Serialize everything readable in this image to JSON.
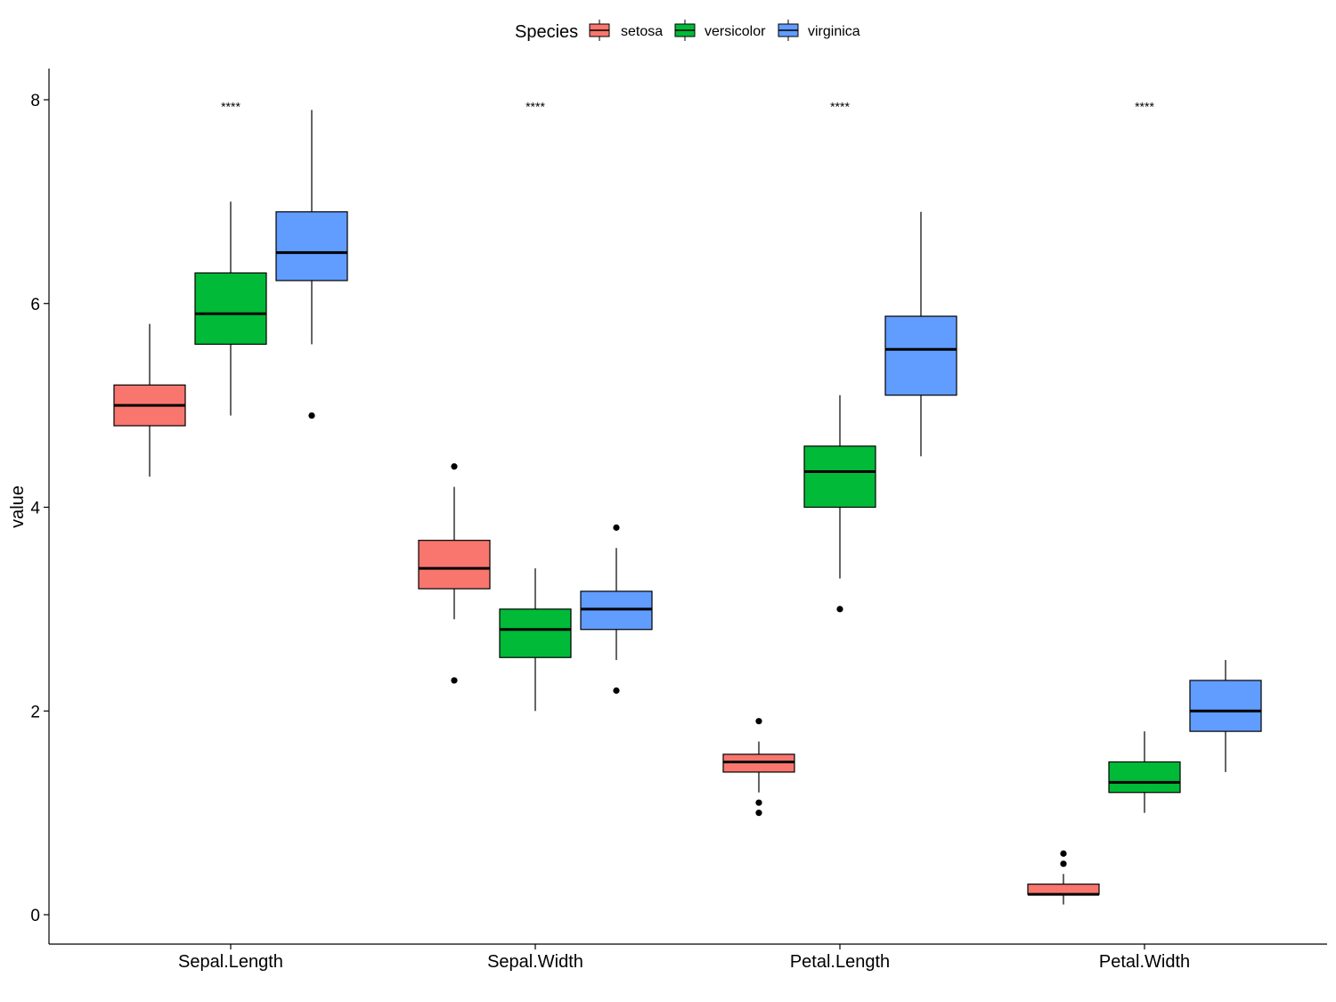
{
  "chart_data": {
    "type": "boxplot",
    "title": "",
    "xlabel": "",
    "ylabel": "value",
    "ylim": [
      0,
      8
    ],
    "yticks": [
      0,
      2,
      4,
      6,
      8
    ],
    "categories": [
      "Sepal.Length",
      "Sepal.Width",
      "Petal.Length",
      "Petal.Width"
    ],
    "legend": {
      "title": "Species",
      "position": "top",
      "entries": [
        {
          "name": "setosa",
          "color": "#F8766D"
        },
        {
          "name": "versicolor",
          "color": "#00BA38"
        },
        {
          "name": "virginica",
          "color": "#619CFF"
        }
      ]
    },
    "significance": [
      "****",
      "****",
      "****",
      "****"
    ],
    "sig_y": 7.95,
    "series": [
      {
        "name": "setosa",
        "color": "#F8766D",
        "boxes": [
          {
            "min": 4.3,
            "q1": 4.8,
            "median": 5.0,
            "q3": 5.2,
            "max": 5.8,
            "outliers": []
          },
          {
            "min": 2.9,
            "q1": 3.2,
            "median": 3.4,
            "q3": 3.675,
            "max": 4.2,
            "outliers": [
              4.4,
              2.3
            ]
          },
          {
            "min": 1.2,
            "q1": 1.4,
            "median": 1.5,
            "q3": 1.575,
            "max": 1.7,
            "outliers": [
              1.9,
              1.1,
              1.0
            ]
          },
          {
            "min": 0.1,
            "q1": 0.2,
            "median": 0.2,
            "q3": 0.3,
            "max": 0.4,
            "outliers": [
              0.6,
              0.5
            ]
          }
        ]
      },
      {
        "name": "versicolor",
        "color": "#00BA38",
        "boxes": [
          {
            "min": 4.9,
            "q1": 5.6,
            "median": 5.9,
            "q3": 6.3,
            "max": 7.0,
            "outliers": []
          },
          {
            "min": 2.0,
            "q1": 2.525,
            "median": 2.8,
            "q3": 3.0,
            "max": 3.4,
            "outliers": []
          },
          {
            "min": 3.3,
            "q1": 4.0,
            "median": 4.35,
            "q3": 4.6,
            "max": 5.1,
            "outliers": [
              3.0
            ]
          },
          {
            "min": 1.0,
            "q1": 1.2,
            "median": 1.3,
            "q3": 1.5,
            "max": 1.8,
            "outliers": []
          }
        ]
      },
      {
        "name": "virginica",
        "color": "#619CFF",
        "boxes": [
          {
            "min": 5.6,
            "q1": 6.225,
            "median": 6.5,
            "q3": 6.9,
            "max": 7.9,
            "outliers": [
              4.9
            ]
          },
          {
            "min": 2.5,
            "q1": 2.8,
            "median": 3.0,
            "q3": 3.175,
            "max": 3.6,
            "outliers": [
              3.8,
              2.2
            ]
          },
          {
            "min": 4.5,
            "q1": 5.1,
            "median": 5.55,
            "q3": 5.875,
            "max": 6.9,
            "outliers": []
          },
          {
            "min": 1.4,
            "q1": 1.8,
            "median": 2.0,
            "q3": 2.3,
            "max": 2.5,
            "outliers": []
          }
        ]
      }
    ]
  }
}
